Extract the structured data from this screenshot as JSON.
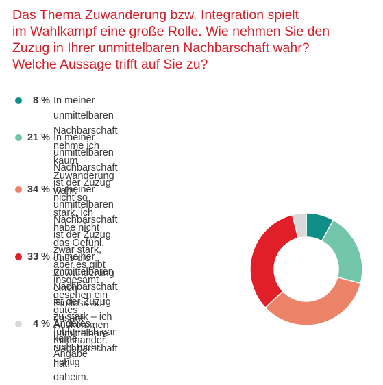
{
  "title": "Das Thema Zuwanderung bzw. Integration spielt\nim Wahlkampf eine große Rolle. Wie nehmen Sie den\nZuzug in Ihrer unmittelbaren Nachbarschaft wahr?\nWelche Aussage trifft auf Sie zu?",
  "chart_data": {
    "type": "pie",
    "title": "Das Thema Zuwanderung bzw. Integration spielt im Wahlkampf eine große Rolle. Wie nehmen Sie den Zuzug in Ihrer unmittelbaren Nachbarschaft wahr? Welche Aussage trifft auf Sie zu?",
    "categories": [
      "In meiner unmittelbaren Nachbarschaft nehme ich kaum Zuwanderung wahr.",
      "In meiner unmittelbaren Nachbarschaft ist der Zuzug nicht so stark, ich habe nicht das Gefühl, dass die Zuwanderung einen Einfluss auf unsere unmittelbare Nachbarschaft hat.",
      "In meiner unmittelbaren Nachbarschaft ist der Zuzug zwar stark, aber es gibt insgesamt gesehen ein gutes Auskommen miteinander.",
      "In meiner unmittelbaren Nachbarschaft ist der Zuzug zu stark – ich fühle mich gar nicht mehr richtig daheim.",
      "Anderes, keine Angabe"
    ],
    "values": [
      8,
      21,
      34,
      33,
      4
    ],
    "colors": [
      "#0f8f86",
      "#74c6ab",
      "#ec8267",
      "#e01f28",
      "#d9d9d9"
    ],
    "legend_position": "left",
    "donut": true
  },
  "legend": [
    {
      "pct": "8 %",
      "text": "In meiner unmittelbaren Nachbarschaft nehme ich kaum\nZuwanderung wahr."
    },
    {
      "pct": "21 %",
      "text": "In meiner unmittelbaren Nachbarschaft ist der Zuzug nicht so\nstark, ich habe nicht das Gefühl, dass die Zuwanderung einen\nEinfluss auf unsere unmittelbare Nachbarschaft hat."
    },
    {
      "pct": "34 %",
      "text": "In meiner unmittelbaren Nachbarschaft\nist der Zuzug zwar stark, aber es gibt\ninsgesamt gesehen ein gutes\nAuskommen miteinander."
    },
    {
      "pct": "33 %",
      "text": "In meiner unmittelbaren\nNachbarschaft ist der Zuzug\nzu stark – ich fühle mich gar\nnicht mehr richtig daheim."
    },
    {
      "pct": "4 %",
      "text": "Anderes, keine Angabe"
    }
  ]
}
